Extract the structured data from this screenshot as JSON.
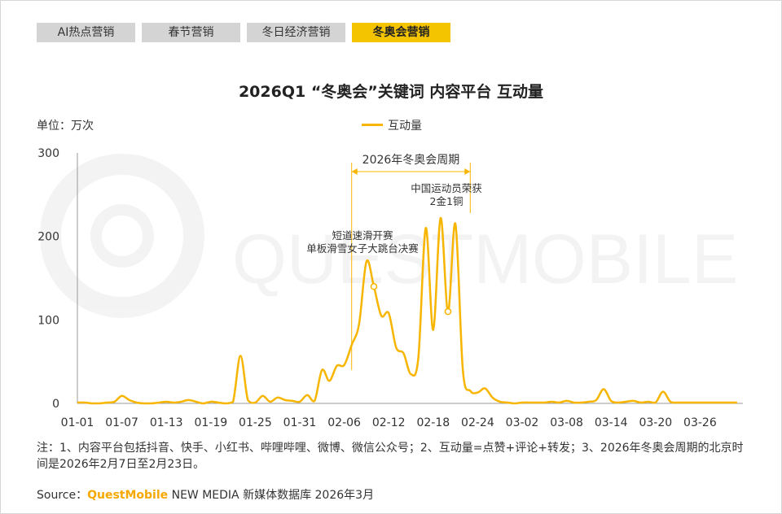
{
  "tabs": [
    {
      "label": "AI热点营销",
      "active": false
    },
    {
      "label": "春节营销",
      "active": false
    },
    {
      "label": "冬日经济营销",
      "active": false
    },
    {
      "label": "冬奥会营销",
      "active": true
    }
  ],
  "watermark_text": "QUESTMOBILE",
  "note": "注：1、内容平台包括抖音、快手、小红书、哔哩哔哩、微博、微信公众号；2、互动量=点赞+评论+转发；3、2026年冬奥会周期的北京时间是2026年2月7日至2月23日。",
  "source": {
    "prefix": "Source：",
    "brand": "QuestMobile",
    "rest": " NEW MEDIA 新媒体数据库 2026年3月"
  },
  "chart_data": {
    "type": "line",
    "title": "2026Q1 “冬奥会”关键词 内容平台 互动量",
    "unit": "单位：万次",
    "legend": "互动量",
    "color": "#f7b500",
    "ylim": [
      0,
      300
    ],
    "yticks": [
      0,
      100,
      200,
      300
    ],
    "xticks": [
      "01-01",
      "01-07",
      "01-13",
      "01-19",
      "01-25",
      "01-31",
      "02-06",
      "02-12",
      "02-18",
      "02-24",
      "03-02",
      "03-08",
      "03-14",
      "03-20",
      "03-26"
    ],
    "series": [
      {
        "name": "互动量",
        "x": [
          "01-01",
          "01-02",
          "01-03",
          "01-04",
          "01-05",
          "01-06",
          "01-07",
          "01-08",
          "01-09",
          "01-10",
          "01-11",
          "01-12",
          "01-13",
          "01-14",
          "01-15",
          "01-16",
          "01-17",
          "01-18",
          "01-19",
          "01-20",
          "01-21",
          "01-22",
          "01-23",
          "01-24",
          "01-25",
          "01-26",
          "01-27",
          "01-28",
          "01-29",
          "01-30",
          "01-31",
          "02-01",
          "02-02",
          "02-03",
          "02-04",
          "02-05",
          "02-06",
          "02-07",
          "02-08",
          "02-09",
          "02-10",
          "02-11",
          "02-12",
          "02-13",
          "02-14",
          "02-15",
          "02-16",
          "02-17",
          "02-18",
          "02-19",
          "02-20",
          "02-21",
          "02-22",
          "02-23",
          "02-24",
          "02-25",
          "02-26",
          "02-27",
          "02-28",
          "03-01",
          "03-02",
          "03-03",
          "03-04",
          "03-05",
          "03-06",
          "03-07",
          "03-08",
          "03-09",
          "03-10",
          "03-11",
          "03-12",
          "03-13",
          "03-14",
          "03-15",
          "03-16",
          "03-17",
          "03-18",
          "03-19",
          "03-20",
          "03-21",
          "03-22",
          "03-23",
          "03-24",
          "03-25",
          "03-26",
          "03-27",
          "03-28",
          "03-29",
          "03-30",
          "03-31"
        ],
        "values": [
          1,
          1,
          0,
          0,
          1,
          2,
          9,
          4,
          1,
          0,
          0,
          1,
          2,
          1,
          2,
          4,
          2,
          0,
          2,
          1,
          0,
          2,
          57,
          4,
          1,
          9,
          2,
          7,
          4,
          3,
          2,
          10,
          3,
          40,
          27,
          45,
          46,
          70,
          95,
          170,
          140,
          105,
          108,
          67,
          60,
          35,
          55,
          210,
          88,
          222,
          110,
          215,
          40,
          15,
          13,
          18,
          7,
          2,
          1,
          0,
          1,
          1,
          1,
          1,
          2,
          1,
          3,
          1,
          1,
          2,
          4,
          17,
          3,
          1,
          2,
          3,
          1,
          2,
          1,
          14,
          2,
          1,
          1,
          1,
          1,
          1,
          1,
          1,
          1,
          1
        ]
      }
    ],
    "period": {
      "label": "2026年冬奥会周期",
      "start": "02-07",
      "end": "02-23"
    },
    "annotations": [
      {
        "x": "02-10",
        "lines": [
          "短道速滑开赛",
          "单板滑雪女子大跳台决赛"
        ]
      },
      {
        "x": "02-20",
        "lines": [
          "中国运动员荣获",
          "2金1铜"
        ]
      }
    ]
  }
}
